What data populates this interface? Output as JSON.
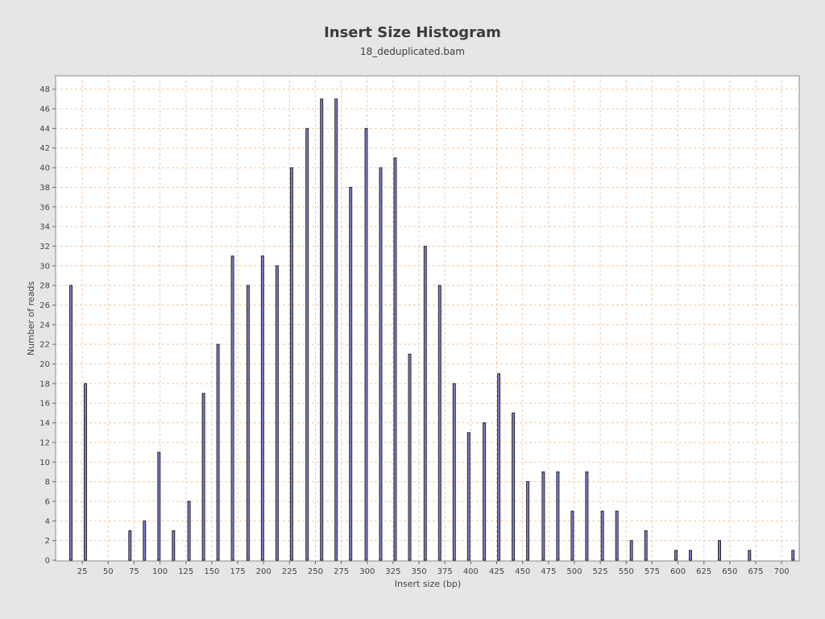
{
  "chart_data": {
    "type": "bar",
    "title": "Insert Size Histogram",
    "subtitle": "18_deduplicated.bam",
    "xlabel": "Insert size (bp)",
    "ylabel": "Number of reads",
    "xlim": [
      0,
      717
    ],
    "ylim": [
      0,
      49
    ],
    "x_ticks": [
      25,
      50,
      75,
      100,
      125,
      150,
      175,
      200,
      225,
      250,
      275,
      300,
      325,
      350,
      375,
      400,
      425,
      450,
      475,
      500,
      525,
      550,
      575,
      600,
      625,
      650,
      675,
      700
    ],
    "y_ticks": [
      0,
      2,
      4,
      6,
      8,
      10,
      12,
      14,
      16,
      18,
      20,
      22,
      24,
      26,
      28,
      30,
      32,
      34,
      36,
      38,
      40,
      42,
      44,
      46,
      48
    ],
    "grid": true,
    "bar_color": "#7b7bd0",
    "bar_outline": "#2a2a2a",
    "grid_color": "#f0c8a8",
    "plot_background": "#ffffff",
    "x": [
      14,
      28,
      71,
      85,
      99,
      113,
      128,
      142,
      156,
      170,
      185,
      199,
      213,
      227,
      242,
      256,
      270,
      284,
      299,
      313,
      327,
      341,
      356,
      370,
      384,
      398,
      413,
      427,
      441,
      455,
      470,
      484,
      498,
      512,
      527,
      541,
      555,
      569,
      598,
      612,
      640,
      669,
      711
    ],
    "values": [
      28,
      18,
      3,
      4,
      11,
      3,
      6,
      17,
      22,
      31,
      28,
      31,
      30,
      40,
      44,
      47,
      47,
      38,
      44,
      40,
      41,
      21,
      32,
      28,
      18,
      13,
      14,
      19,
      15,
      8,
      9,
      9,
      5,
      9,
      5,
      5,
      2,
      3,
      1,
      1,
      2,
      1,
      1
    ]
  }
}
